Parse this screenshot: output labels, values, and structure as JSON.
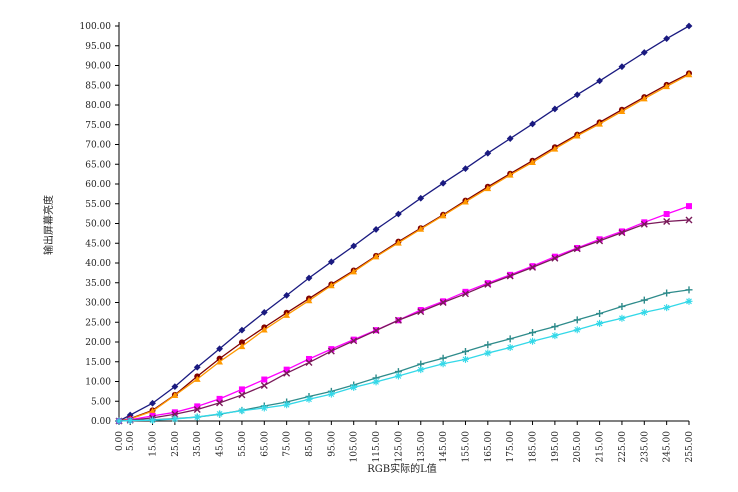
{
  "chart_data": {
    "type": "line",
    "title": "",
    "xlabel": "RGB实际的L值",
    "ylabel": "输出屏幕亮度",
    "xlim": [
      0,
      255
    ],
    "ylim": [
      0,
      100
    ],
    "y_tick_step": 5,
    "x_ticks": [
      0,
      5,
      15,
      25,
      35,
      45,
      55,
      65,
      75,
      85,
      95,
      105,
      115,
      125,
      135,
      145,
      155,
      165,
      175,
      185,
      195,
      205,
      215,
      225,
      235,
      245,
      255
    ],
    "x": [
      0,
      5,
      15,
      25,
      35,
      45,
      55,
      65,
      75,
      85,
      95,
      105,
      115,
      125,
      135,
      145,
      155,
      165,
      175,
      185,
      195,
      205,
      215,
      225,
      235,
      245,
      255
    ],
    "grid": false,
    "legend": "none",
    "series": [
      {
        "color": "#1a1a80",
        "marker": "diamond",
        "values": [
          0,
          1.5,
          4.5,
          8.7,
          13.6,
          18.3,
          23.0,
          27.5,
          31.8,
          36.2,
          40.3,
          44.3,
          48.5,
          52.4,
          56.4,
          60.2,
          63.9,
          67.8,
          71.5,
          75.2,
          79.0,
          82.6,
          86.1,
          89.7,
          93.3,
          96.8,
          100.0
        ]
      },
      {
        "color": "#800000",
        "marker": "circle",
        "values": [
          0,
          0.6,
          2.7,
          6.6,
          11.3,
          15.8,
          19.9,
          23.7,
          27.4,
          31.0,
          34.6,
          38.1,
          41.8,
          45.4,
          48.8,
          52.2,
          55.8,
          59.3,
          62.6,
          65.9,
          69.3,
          72.5,
          75.6,
          78.8,
          82.0,
          85.1,
          88.0
        ]
      },
      {
        "color": "#ff9900",
        "marker": "triangle",
        "values": [
          0,
          0.5,
          2.5,
          6.5,
          10.6,
          15.0,
          18.9,
          23.1,
          26.8,
          30.5,
          34.3,
          37.8,
          41.6,
          45.1,
          48.6,
          52.0,
          55.5,
          58.9,
          62.3,
          65.5,
          68.9,
          72.2,
          75.2,
          78.4,
          81.6,
          84.7,
          87.7
        ]
      },
      {
        "color": "#ff00ff",
        "marker": "square",
        "values": [
          0,
          0.3,
          1.3,
          2.2,
          3.7,
          5.6,
          8.0,
          10.5,
          13.0,
          15.7,
          18.2,
          20.6,
          23.0,
          25.5,
          28.1,
          30.3,
          32.7,
          34.9,
          37.0,
          39.2,
          41.6,
          43.8,
          46.0,
          48.0,
          50.3,
          52.4,
          54.4
        ]
      },
      {
        "color": "#7a1a5a",
        "marker": "x",
        "values": [
          0,
          0.2,
          0.8,
          1.7,
          2.9,
          4.6,
          6.6,
          9.0,
          12.1,
          14.8,
          17.7,
          20.3,
          22.9,
          25.5,
          27.7,
          30.0,
          32.2,
          34.6,
          36.7,
          38.9,
          41.2,
          43.6,
          45.6,
          47.7,
          49.8,
          50.5,
          50.9
        ]
      },
      {
        "color": "#2e8b8b",
        "marker": "plus",
        "values": [
          0,
          0.1,
          0.3,
          0.6,
          1.0,
          1.7,
          2.7,
          3.8,
          4.8,
          6.2,
          7.5,
          9.1,
          10.9,
          12.5,
          14.4,
          15.9,
          17.6,
          19.3,
          20.8,
          22.4,
          23.9,
          25.6,
          27.2,
          29.0,
          30.6,
          32.4,
          33.2
        ]
      },
      {
        "color": "#33d8e8",
        "marker": "star",
        "values": [
          0,
          0.1,
          0.2,
          0.5,
          1.0,
          1.8,
          2.6,
          3.3,
          4.1,
          5.5,
          6.8,
          8.5,
          9.9,
          11.4,
          13.0,
          14.5,
          15.6,
          17.2,
          18.6,
          20.2,
          21.6,
          23.1,
          24.7,
          26.0,
          27.5,
          28.7,
          30.3
        ]
      }
    ]
  }
}
